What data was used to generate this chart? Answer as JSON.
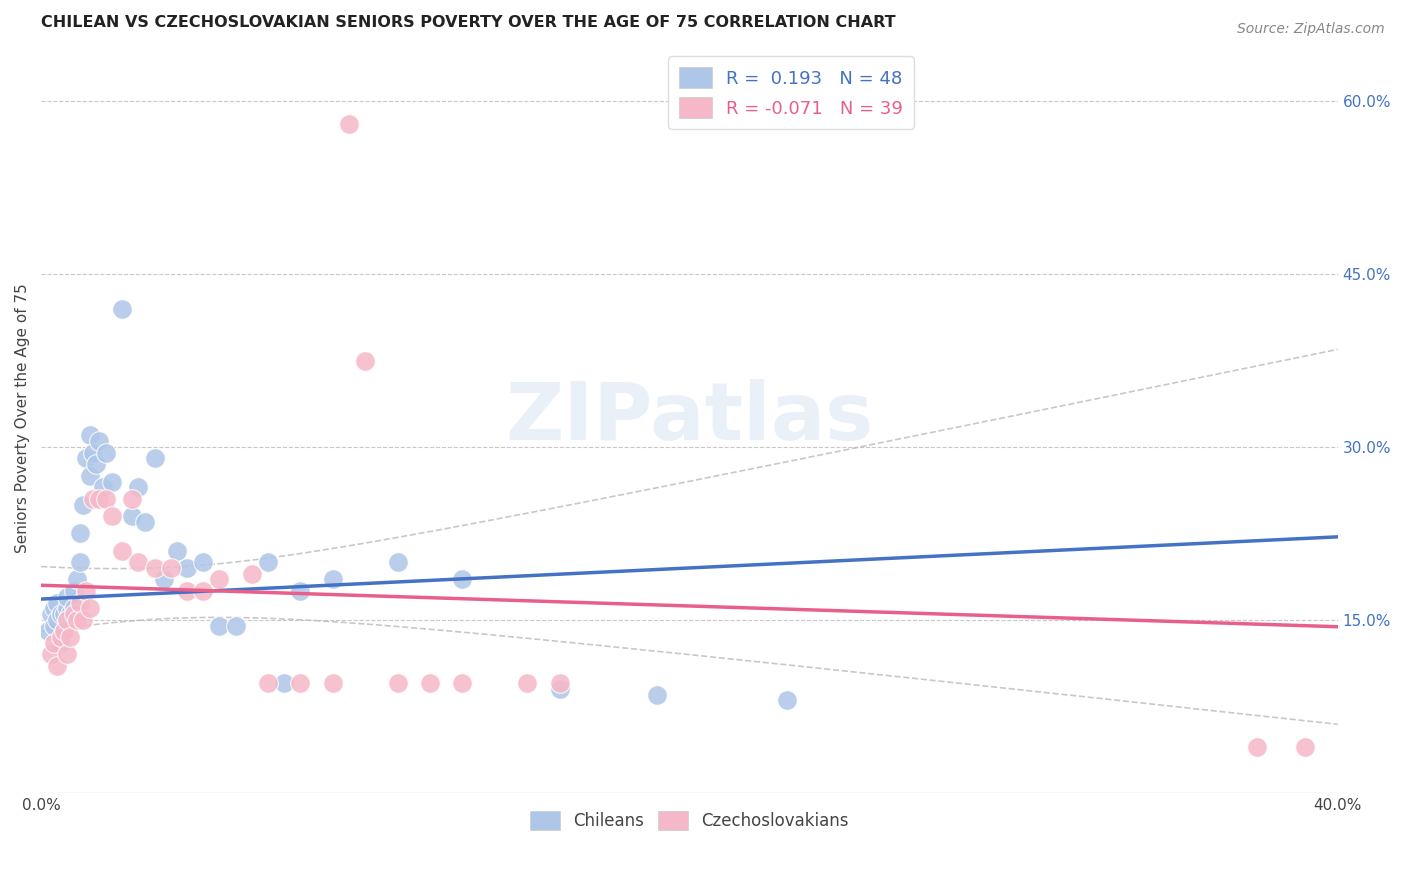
{
  "title": "CHILEAN VS CZECHOSLOVAKIAN SENIORS POVERTY OVER THE AGE OF 75 CORRELATION CHART",
  "source": "Source: ZipAtlas.com",
  "ylabel": "Seniors Poverty Over the Age of 75",
  "xlim": [
    0.0,
    0.4
  ],
  "ylim": [
    0.0,
    0.65
  ],
  "xticks": [
    0.0,
    0.4
  ],
  "xtick_labels": [
    "0.0%",
    "40.0%"
  ],
  "yticks_right": [
    0.15,
    0.3,
    0.45,
    0.6
  ],
  "ytick_right_labels": [
    "15.0%",
    "30.0%",
    "45.0%",
    "60.0%"
  ],
  "grid_yticks": [
    0.15,
    0.3,
    0.45,
    0.6
  ],
  "grid_color": "#c8c8c8",
  "background_color": "#ffffff",
  "watermark": "ZIPatlas",
  "chilean_color": "#aec6e8",
  "czechoslovakian_color": "#f5b8c8",
  "chilean_line_color": "#4472c4",
  "czechoslovakian_line_color": "#e8608a",
  "ci_color": "#bbbbbb",
  "chilean_R": 0.193,
  "chilean_N": 48,
  "czechoslovakian_R": -0.071,
  "czechoslovakian_N": 39,
  "chilean_intercept": 0.168,
  "chilean_slope": 0.135,
  "czechoslovakian_intercept": 0.18,
  "czechoslovakian_slope": -0.09,
  "chilean_x": [
    0.002,
    0.003,
    0.004,
    0.004,
    0.005,
    0.005,
    0.006,
    0.006,
    0.007,
    0.007,
    0.008,
    0.008,
    0.009,
    0.01,
    0.01,
    0.011,
    0.012,
    0.012,
    0.013,
    0.014,
    0.015,
    0.015,
    0.016,
    0.017,
    0.018,
    0.019,
    0.02,
    0.022,
    0.025,
    0.028,
    0.03,
    0.032,
    0.035,
    0.038,
    0.042,
    0.045,
    0.05,
    0.055,
    0.06,
    0.07,
    0.075,
    0.08,
    0.09,
    0.11,
    0.13,
    0.16,
    0.19,
    0.23
  ],
  "chilean_y": [
    0.14,
    0.155,
    0.145,
    0.16,
    0.15,
    0.165,
    0.13,
    0.155,
    0.14,
    0.155,
    0.16,
    0.17,
    0.155,
    0.175,
    0.16,
    0.185,
    0.2,
    0.225,
    0.25,
    0.29,
    0.275,
    0.31,
    0.295,
    0.285,
    0.305,
    0.265,
    0.295,
    0.27,
    0.42,
    0.24,
    0.265,
    0.235,
    0.29,
    0.185,
    0.21,
    0.195,
    0.2,
    0.145,
    0.145,
    0.2,
    0.095,
    0.175,
    0.185,
    0.2,
    0.185,
    0.09,
    0.085,
    0.08
  ],
  "czechoslovakian_x": [
    0.003,
    0.004,
    0.005,
    0.006,
    0.007,
    0.008,
    0.008,
    0.009,
    0.01,
    0.011,
    0.012,
    0.013,
    0.014,
    0.015,
    0.016,
    0.018,
    0.02,
    0.022,
    0.025,
    0.028,
    0.03,
    0.035,
    0.04,
    0.045,
    0.05,
    0.055,
    0.065,
    0.07,
    0.08,
    0.09,
    0.095,
    0.1,
    0.11,
    0.12,
    0.13,
    0.15,
    0.16,
    0.375,
    0.39
  ],
  "czechoslovakian_y": [
    0.12,
    0.13,
    0.11,
    0.135,
    0.14,
    0.12,
    0.15,
    0.135,
    0.155,
    0.15,
    0.165,
    0.15,
    0.175,
    0.16,
    0.255,
    0.255,
    0.255,
    0.24,
    0.21,
    0.255,
    0.2,
    0.195,
    0.195,
    0.175,
    0.175,
    0.185,
    0.19,
    0.095,
    0.095,
    0.095,
    0.58,
    0.375,
    0.095,
    0.095,
    0.095,
    0.095,
    0.095,
    0.04,
    0.04
  ]
}
